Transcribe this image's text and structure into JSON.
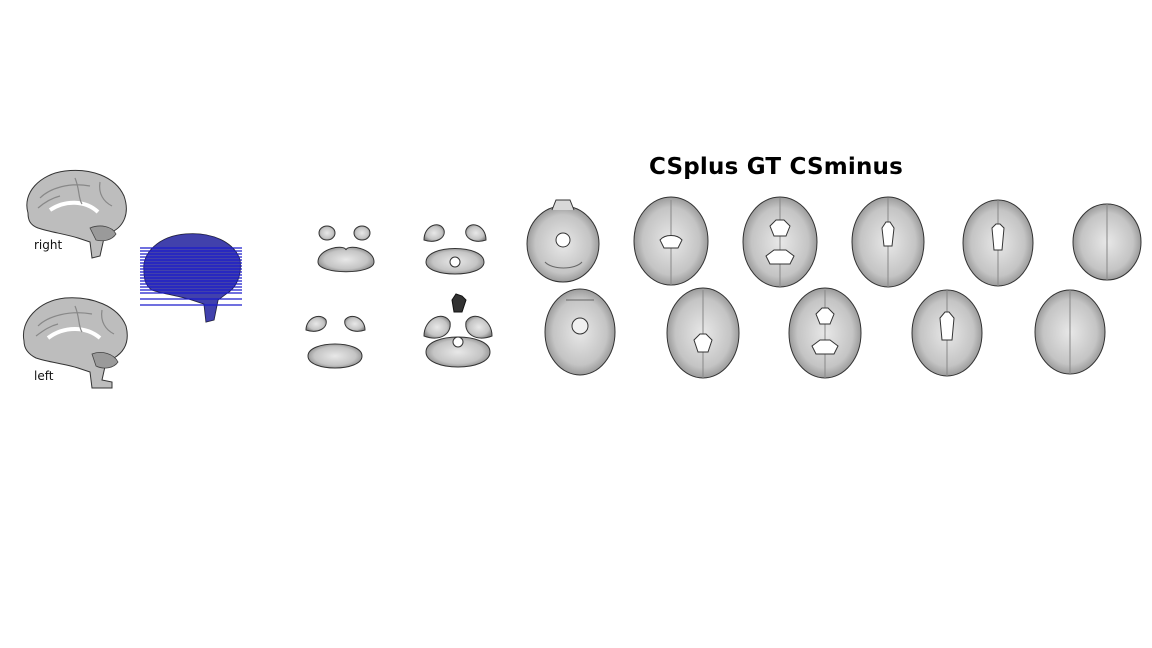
{
  "figure": {
    "title": "CSplus GT CSminus",
    "labels": {
      "right": "right",
      "left": "left"
    },
    "colors": {
      "slice_lines": "#1a1acc",
      "overlay": "#2b2bd6",
      "brain_gray": "#b9b9b9",
      "outline": "#3a3a3a"
    },
    "slice_line_count": 18,
    "axial_slices_top_row": 8,
    "axial_slices_bottom_row": 7
  }
}
